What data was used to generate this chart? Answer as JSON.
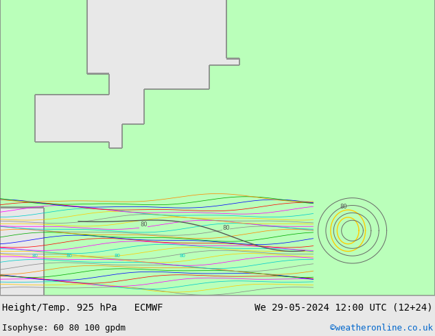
{
  "title_left": "Height/Temp. 925 hPa   ECMWF",
  "title_right": "We 29-05-2024 12:00 UTC (12+24)",
  "subtitle_left": "Isophyse: 60 80 100 gpdm",
  "subtitle_right": "©weatheronline.co.uk",
  "bg_color": "#e8e8e8",
  "land_color_rgb": [
    0.733,
    1.0,
    0.733
  ],
  "sea_color_rgb": [
    0.91,
    0.91,
    0.91
  ],
  "text_color_black": "#000000",
  "text_color_blue": "#0066cc",
  "figsize": [
    6.34,
    4.9
  ],
  "dpi": 100,
  "label_fontsize": 9,
  "title_fontsize": 10
}
